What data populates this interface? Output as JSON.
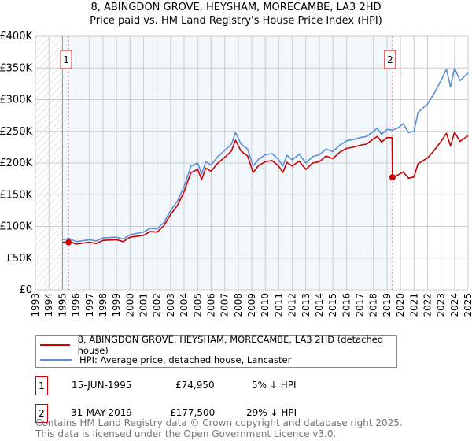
{
  "title_line1": "8, ABINGDON GROVE, HEYSHAM, MORECAMBE, LA3 2HD",
  "title_line2": "Price paid vs. HM Land Registry's House Price Index (HPI)",
  "chart_data": {
    "type": "line",
    "title": "Price paid vs. HM Land Registry's House Price Index (HPI)",
    "xlim": [
      1993,
      2025
    ],
    "ylim": [
      0,
      400000
    ],
    "grid": true,
    "y_ticks": [
      {
        "v": 0,
        "label": "£0"
      },
      {
        "v": 50000,
        "label": "£50K"
      },
      {
        "v": 100000,
        "label": "£100K"
      },
      {
        "v": 150000,
        "label": "£150K"
      },
      {
        "v": 200000,
        "label": "£200K"
      },
      {
        "v": 250000,
        "label": "£250K"
      },
      {
        "v": 300000,
        "label": "£300K"
      },
      {
        "v": 350000,
        "label": "£350K"
      },
      {
        "v": 400000,
        "label": "£400K"
      }
    ],
    "x_ticks": [
      "1993",
      "1994",
      "1995",
      "1996",
      "1997",
      "1998",
      "1999",
      "2000",
      "2001",
      "2002",
      "2003",
      "2004",
      "2005",
      "2006",
      "2007",
      "2008",
      "2009",
      "2010",
      "2011",
      "2012",
      "2013",
      "2014",
      "2015",
      "2016",
      "2017",
      "2018",
      "2019",
      "2020",
      "2021",
      "2022",
      "2023",
      "2024",
      "2025"
    ],
    "hatched_range": [
      1993,
      1995
    ],
    "shaded_range": [
      1995,
      2019.41
    ],
    "series": [
      {
        "name": "8, ABINGDON GROVE, HEYSHAM, MORECAMBE, LA3 2HD (detached house)",
        "color": "#cc0000",
        "x": [
          1995,
          1995.45,
          1995.5,
          1996,
          1997,
          1997.5,
          1998,
          1999,
          1999.5,
          2000,
          2001,
          2001.5,
          2002,
          2002.5,
          2003,
          2003.5,
          2004,
          2004.5,
          2005,
          2005.3,
          2005.6,
          2006,
          2006.5,
          2007,
          2007.5,
          2007.8,
          2008.2,
          2008.7,
          2009.1,
          2009.5,
          2010,
          2010.5,
          2011,
          2011.3,
          2011.6,
          2012,
          2012.5,
          2013,
          2013.5,
          2014,
          2014.5,
          2015,
          2015.5,
          2016,
          2016.5,
          2017,
          2017.5,
          2018,
          2018.3,
          2018.6,
          2019,
          2019.38,
          2019.41,
          2019.8,
          2020.2,
          2020.6,
          2021,
          2021.3,
          2022,
          2022.5,
          2023,
          2023.4,
          2023.7,
          2024,
          2024.4,
          2025
        ],
        "y": [
          75000,
          74950,
          77000,
          72000,
          75000,
          73000,
          78000,
          79000,
          76000,
          83000,
          86000,
          92000,
          91000,
          101000,
          119000,
          133000,
          155000,
          185000,
          190000,
          174000,
          192000,
          187000,
          200000,
          209000,
          219000,
          236000,
          219000,
          211000,
          185000,
          196000,
          202000,
          204000,
          195000,
          185000,
          201000,
          195000,
          203000,
          190000,
          200000,
          202000,
          211000,
          207000,
          217000,
          223000,
          225000,
          228000,
          230000,
          238000,
          242000,
          233000,
          240000,
          240000,
          177500,
          181000,
          186000,
          176000,
          178000,
          199000,
          208000,
          220000,
          234000,
          247000,
          227000,
          249000,
          234000,
          243000
        ]
      },
      {
        "name": "HPI: Average price, detached house, Lancaster",
        "color": "#5b8fd6",
        "x": [
          1995,
          1995.5,
          1996,
          1997,
          1997.5,
          1998,
          1999,
          1999.5,
          2000,
          2001,
          2001.5,
          2002,
          2002.5,
          2003,
          2003.5,
          2004,
          2004.5,
          2005,
          2005.3,
          2005.6,
          2006,
          2006.5,
          2007,
          2007.5,
          2007.8,
          2008.2,
          2008.7,
          2009.1,
          2009.5,
          2010,
          2010.5,
          2011,
          2011.3,
          2011.6,
          2012,
          2012.5,
          2013,
          2013.5,
          2014,
          2014.5,
          2015,
          2015.5,
          2016,
          2016.5,
          2017,
          2017.5,
          2018,
          2018.3,
          2018.6,
          2019,
          2019.4,
          2019.8,
          2020.2,
          2020.6,
          2021,
          2021.3,
          2022,
          2022.5,
          2023,
          2023.4,
          2023.7,
          2024,
          2024.4,
          2025
        ],
        "y": [
          79000,
          81000,
          76000,
          79000,
          77000,
          82000,
          83000,
          80000,
          87000,
          91000,
          97000,
          96000,
          106000,
          125000,
          140000,
          163000,
          195000,
          200000,
          183000,
          202000,
          197000,
          210000,
          220000,
          230000,
          248000,
          230000,
          222000,
          195000,
          206000,
          213000,
          215000,
          205000,
          195000,
          212000,
          205000,
          214000,
          200000,
          210000,
          213000,
          222000,
          218000,
          228000,
          235000,
          237000,
          240000,
          242000,
          250000,
          255000,
          245000,
          253000,
          252000,
          255000,
          262000,
          248000,
          250000,
          280000,
          293000,
          310000,
          330000,
          348000,
          320000,
          350000,
          330000,
          342000
        ]
      }
    ],
    "sales": [
      {
        "label": "1",
        "x": 1995.45,
        "y": 74950
      },
      {
        "label": "2",
        "x": 2019.41,
        "y": 177500
      }
    ]
  },
  "legend": {
    "property": "8, ABINGDON GROVE, HEYSHAM, MORECAMBE, LA3 2HD (detached house)",
    "hpi": "HPI: Average price, detached house, Lancaster"
  },
  "transactions": [
    {
      "num": "1",
      "date": "15-JUN-1995",
      "price": "£74,950",
      "hpi": "5% ↓ HPI"
    },
    {
      "num": "2",
      "date": "31-MAY-2019",
      "price": "£177,500",
      "hpi": "29% ↓ HPI"
    }
  ],
  "footer_line1": "Contains HM Land Registry data © Crown copyright and database right 2025.",
  "footer_line2": "This data is licensed under the Open Government Licence v3.0."
}
